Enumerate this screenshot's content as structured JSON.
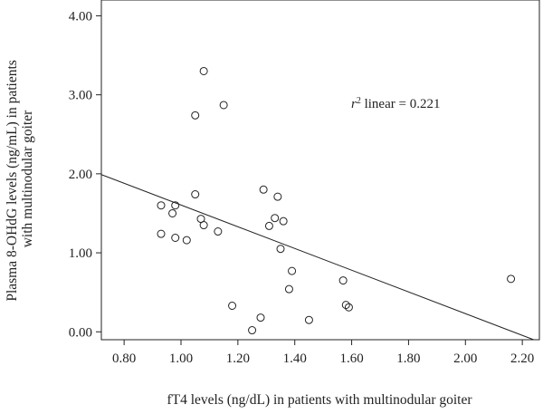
{
  "chart_data": {
    "type": "scatter",
    "xlabel": "fT4 levels (ng/dL) in patients with multinodular goiter",
    "ylabel_lines": [
      "Plasma 8-OHdG levels (ng/mL) in patients",
      "with multinodular goiter"
    ],
    "xlim": [
      0.72,
      2.26
    ],
    "ylim": [
      -0.1,
      4.2
    ],
    "x_ticks": [
      0.8,
      1.0,
      1.2,
      1.4,
      1.6,
      1.8,
      2.0,
      2.2
    ],
    "x_tick_labels": [
      "0.80",
      "1.00",
      "1.20",
      "1.40",
      "1.60",
      "1.80",
      "2.00",
      "2.20"
    ],
    "y_ticks": [
      0.0,
      1.0,
      2.0,
      3.0,
      4.0
    ],
    "y_tick_labels": [
      "0.00",
      "1.00",
      "2.00",
      "3.00",
      "4.00"
    ],
    "grid": false,
    "annotation": {
      "r": "r",
      "sup": "2",
      "rest": " linear = 0.221"
    },
    "fit_line": {
      "points": [
        [
          0.72,
          1.99
        ],
        [
          2.24,
          -0.1
        ]
      ]
    },
    "points": [
      {
        "x": 1.08,
        "y": 3.3
      },
      {
        "x": 1.05,
        "y": 2.74
      },
      {
        "x": 1.15,
        "y": 2.87
      },
      {
        "x": 1.29,
        "y": 1.8
      },
      {
        "x": 1.34,
        "y": 1.71
      },
      {
        "x": 1.05,
        "y": 1.74
      },
      {
        "x": 0.93,
        "y": 1.6
      },
      {
        "x": 0.98,
        "y": 1.6
      },
      {
        "x": 0.97,
        "y": 1.5
      },
      {
        "x": 1.07,
        "y": 1.43
      },
      {
        "x": 1.08,
        "y": 1.35
      },
      {
        "x": 0.93,
        "y": 1.24
      },
      {
        "x": 0.98,
        "y": 1.19
      },
      {
        "x": 1.02,
        "y": 1.16
      },
      {
        "x": 1.13,
        "y": 1.27
      },
      {
        "x": 1.31,
        "y": 1.34
      },
      {
        "x": 1.33,
        "y": 1.44
      },
      {
        "x": 1.36,
        "y": 1.4
      },
      {
        "x": 1.35,
        "y": 1.05
      },
      {
        "x": 1.39,
        "y": 0.77
      },
      {
        "x": 1.38,
        "y": 0.54
      },
      {
        "x": 1.18,
        "y": 0.33
      },
      {
        "x": 1.28,
        "y": 0.18
      },
      {
        "x": 1.25,
        "y": 0.02
      },
      {
        "x": 1.45,
        "y": 0.15
      },
      {
        "x": 1.57,
        "y": 0.65
      },
      {
        "x": 1.58,
        "y": 0.34
      },
      {
        "x": 1.59,
        "y": 0.31
      },
      {
        "x": 2.16,
        "y": 0.67
      }
    ]
  }
}
